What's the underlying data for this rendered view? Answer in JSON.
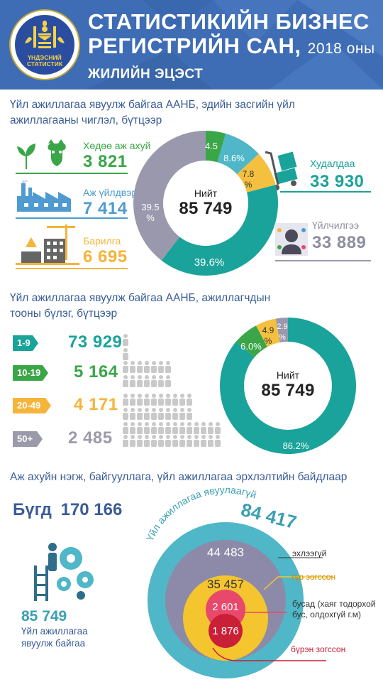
{
  "header": {
    "logo_text_line1": "ҮНДЭСНИЙ",
    "logo_text_line2": "СТАТИСТИК",
    "title_line1": "СТАТИСТИКИЙН БИЗНЕС",
    "title_line2_main": "РЕГИСТРИЙН САН,",
    "title_line2_year": "2018 оны",
    "subtitle": "ЖИЛИЙН ЭЦЭСТ"
  },
  "section1": {
    "title_line1": "Үйл ажиллагаа явуулж байгаа ААНБ, эдийн засгийн үйл",
    "title_line2": "ажиллагааны чиглэл, бүтцээр",
    "items": [
      {
        "label": "Хөдөө аж ахуй",
        "value": "3 821",
        "color": "#3aa648",
        "icon": "agriculture-icon"
      },
      {
        "label": "Аж үйлдвэр",
        "value": "7 414",
        "color": "#4f9bd1",
        "icon": "factory-icon"
      },
      {
        "label": "Барилга",
        "value": "6 695",
        "color": "#f5b43a",
        "icon": "construction-icon"
      },
      {
        "label": "Худалдаа",
        "value": "33 930",
        "color": "#1aa39a",
        "icon": "trade-icon"
      },
      {
        "label": "Үйлчилгээ",
        "value": "33 889",
        "color": "#9a9aaa",
        "icon": "services-icon"
      }
    ],
    "donut_total_label": "Нийт",
    "donut_total_value": "85 749"
  },
  "section2": {
    "title_line1": "Үйл ажиллагаа явуулж байгаа ААНБ, ажиллагчдын",
    "title_line2": "тооны бүлэг, бүтцээр",
    "groups": [
      {
        "label": "1-9",
        "value": "73 929",
        "color": "#1aa39a",
        "people": 1
      },
      {
        "label": "10-19",
        "value": "5 164",
        "color": "#3aa648",
        "people": 2
      },
      {
        "label": "20-49",
        "value": "4 171",
        "color": "#f5b43a",
        "people": 3
      },
      {
        "label": "50+",
        "value": "2 485",
        "color": "#9a9aaa",
        "people": 4
      }
    ],
    "donut_total_label": "Нийт",
    "donut_total_value": "85 749"
  },
  "section3": {
    "title": "Аж ахуйн нэгж, байгууллага, үйл ажиллагаа эрхлэлтийн байдлаар",
    "total_label": "Бүгд",
    "total_value": "170 166",
    "active_value": "85 749",
    "active_label_line1": "Үйл ажиллагаа",
    "active_label_line2": "явуулж байгаа",
    "inactive_arc_label": "Үйл ажиллагаа явуулаагүй",
    "inactive_value": "84 417",
    "circles": [
      {
        "value": "44 483",
        "label": "эхлээгүй",
        "color": "#8c8aa8"
      },
      {
        "value": "35 457",
        "label": "түр зогссон",
        "color": "#f4c52e"
      },
      {
        "value": "2 601",
        "label": "бусад (хаяг тодорхой бус, олдохгүй г.м)",
        "label_line1": "бусад (хаяг тодорхой",
        "label_line2": "бус, олдохгүй г.м)",
        "color": "#e8486b"
      },
      {
        "value": "1 876",
        "label": "бүрэн зогссон",
        "color": "#c91f37"
      }
    ],
    "outer_color": "#4fb7c7"
  },
  "chart_data": [
    {
      "type": "pie",
      "categories": [
        "Хөдөө аж ахуй",
        "Аж үйлдвэр",
        "Барилга",
        "Худалдаа",
        "Үйлчилгээ"
      ],
      "values": [
        3821,
        7414,
        6695,
        33930,
        33889
      ],
      "percent_labels": [
        "4.5",
        "8.6%",
        "7.8 %",
        "39.6%",
        "39.5 %"
      ],
      "colors": [
        "#3aa648",
        "#4fb7c7",
        "#f5c040",
        "#1aa39a",
        "#9a98ad"
      ],
      "total": 85749
    },
    {
      "type": "pie",
      "categories": [
        "1-9",
        "10-19",
        "20-49",
        "50+"
      ],
      "values": [
        73929,
        5164,
        4171,
        2485
      ],
      "percent_labels": [
        "86.2%",
        "6.0%",
        "4.9 %",
        "2.9 %"
      ],
      "colors": [
        "#1aa39a",
        "#3aa648",
        "#f5c040",
        "#9a98ad"
      ],
      "total": 85749
    }
  ]
}
